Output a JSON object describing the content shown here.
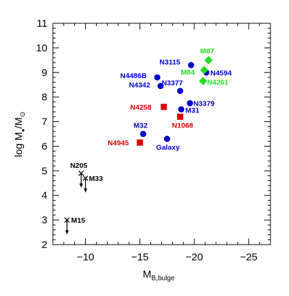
{
  "chart_data": {
    "type": "scatter",
    "xlabel": "M",
    "xlabel_sub": "B,bulge",
    "ylabel_main": "log M",
    "ylabel_sub1": "●",
    "ylabel_slash": "/M",
    "ylabel_sub2": "⊙",
    "xlim": [
      -7,
      -27
    ],
    "ylim": [
      2,
      11
    ],
    "xticks": [
      -10,
      -15,
      -20,
      -25
    ],
    "xtick_labels": [
      "−10",
      "−15",
      "−20",
      "−25"
    ],
    "yticks": [
      2,
      3,
      4,
      5,
      6,
      7,
      8,
      9,
      10,
      11
    ],
    "ytick_labels": [
      "2",
      "3",
      "4",
      "5",
      "6",
      "7",
      "8",
      "9",
      "10",
      "11"
    ],
    "colors": {
      "blue": "#0000cc",
      "red": "#dd0000",
      "green": "#22dd22",
      "black": "#000000",
      "axis": "#000000"
    },
    "points": [
      {
        "label": "N3115",
        "x": -19.7,
        "y": 9.3,
        "marker": "circle",
        "color": "blue",
        "label_dx": -46,
        "label_dy": -1
      },
      {
        "label": "N4486B",
        "x": -16.6,
        "y": 8.8,
        "marker": "circle",
        "color": "blue",
        "label_dx": -54,
        "label_dy": 1
      },
      {
        "label": "N4342",
        "x": -16.9,
        "y": 8.45,
        "marker": "circle",
        "color": "blue",
        "label_dx": -46,
        "label_dy": 2
      },
      {
        "label": "N3377",
        "x": -18.7,
        "y": 8.25,
        "marker": "circle",
        "color": "blue",
        "label_dx": -27,
        "label_dy": -8
      },
      {
        "label": "N3379",
        "x": -19.6,
        "y": 7.75,
        "marker": "circle",
        "color": "blue",
        "label_dx": 5,
        "label_dy": 4
      },
      {
        "label": "M31",
        "x": -18.8,
        "y": 7.5,
        "marker": "circle",
        "color": "blue",
        "label_dx": 6,
        "label_dy": 5
      },
      {
        "label": "M32",
        "x": -15.3,
        "y": 6.5,
        "marker": "circle",
        "color": "blue",
        "label_dx": -14,
        "label_dy": -9
      },
      {
        "label": "Galaxy",
        "x": -17.5,
        "y": 6.3,
        "marker": "circle",
        "color": "blue",
        "label_dx": -16,
        "label_dy": 16
      },
      {
        "label": "N4594",
        "x": -21.1,
        "y": 9.0,
        "marker": "circle",
        "color": "blue",
        "label_dx": 6,
        "label_dy": 4
      },
      {
        "label": "M87",
        "x": -21.3,
        "y": 9.5,
        "marker": "diamond",
        "color": "green",
        "label_dx": -12,
        "label_dy": -10
      },
      {
        "label": "M84",
        "x": -20.9,
        "y": 9.1,
        "marker": "diamond",
        "color": "green",
        "label_dx": -34,
        "label_dy": 7
      },
      {
        "label": "N4261",
        "x": -20.8,
        "y": 8.65,
        "marker": "diamond",
        "color": "green",
        "label_dx": 6,
        "label_dy": 5
      },
      {
        "label": "N4258",
        "x": -17.2,
        "y": 7.6,
        "marker": "square",
        "color": "red",
        "label_dx": -49,
        "label_dy": 4
      },
      {
        "label": "N1068",
        "x": -18.7,
        "y": 7.2,
        "marker": "square",
        "color": "red",
        "label_dx": -12,
        "label_dy": 16
      },
      {
        "label": "N4945",
        "x": -15.0,
        "y": 6.15,
        "marker": "square",
        "color": "red",
        "label_dx": -47,
        "label_dy": 4
      },
      {
        "label": "N205",
        "x": -9.6,
        "y": 4.9,
        "marker": "upper_limit",
        "color": "black",
        "label_dx": -16,
        "label_dy": -8
      },
      {
        "label": "M33",
        "x": -10.0,
        "y": 4.7,
        "marker": "upper_limit",
        "color": "black",
        "label_dx": 5,
        "label_dy": 4
      },
      {
        "label": "M15",
        "x": -8.3,
        "y": 3.0,
        "marker": "upper_limit",
        "color": "black",
        "label_dx": 6,
        "label_dy": 4
      }
    ]
  }
}
